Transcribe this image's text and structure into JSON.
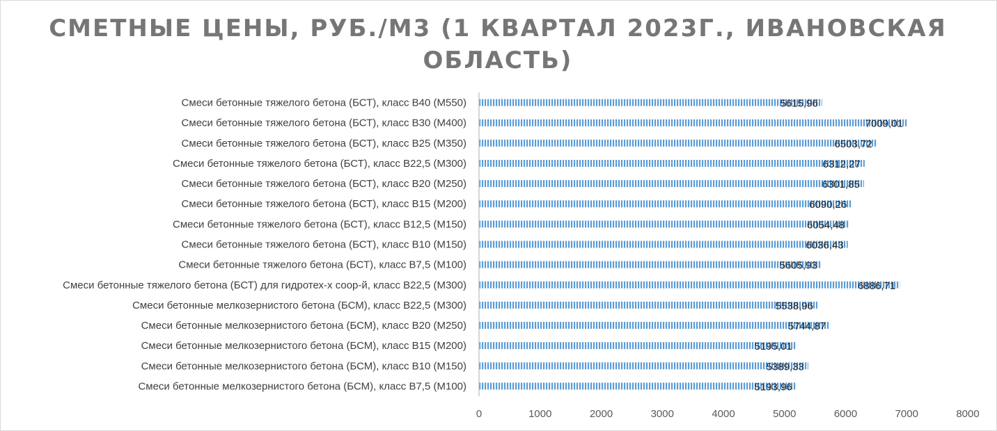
{
  "chart_data": {
    "type": "bar",
    "orientation": "horizontal",
    "title": "СМЕТНЫЕ ЦЕНЫ, РУБ./М3 (1 КВАРТАЛ 2023Г., ИВАНОВСКАЯ ОБЛАСТЬ)",
    "xlim": [
      0,
      8000
    ],
    "x_ticks": [
      "0",
      "1000",
      "2000",
      "3000",
      "4000",
      "5000",
      "6000",
      "7000",
      "8000"
    ],
    "grid": false,
    "legend": "none",
    "bar_color": "#5b9bd5",
    "categories": [
      "Смеси бетонные тяжелого бетона (БСТ), класс В40 (М550)",
      "Смеси бетонные тяжелого бетона (БСТ), класс В30 (М400)",
      "Смеси бетонные тяжелого бетона (БСТ), класс В25 (М350)",
      "Смеси бетонные тяжелого бетона (БСТ), класс В22,5 (М300)",
      "Смеси бетонные тяжелого бетона (БСТ), класс В20 (М250)",
      "Смеси бетонные тяжелого бетона (БСТ), класс В15 (М200)",
      "Смеси бетонные тяжелого бетона (БСТ), класс В12,5 (М150)",
      "Смеси бетонные тяжелого бетона (БСТ), класс В10 (М150)",
      "Смеси бетонные тяжелого бетона (БСТ), класс В7,5 (М100)",
      "Смеси бетонные тяжелого бетона (БСТ) для гидротех-х соор-й, класс В22,5 (М300)",
      "Смеси бетонные мелкозернистого бетона (БСМ), класс В22,5 (М300)",
      "Смеси бетонные мелкозернистого бетона (БСМ), класс В20 (М250)",
      "Смеси бетонные мелкозернистого бетона (БСМ), класс В15 (М200)",
      "Смеси бетонные мелкозернистого бетона (БСМ), класс В10 (М150)",
      "Смеси бетонные мелкозернистого бетона (БСМ), класс В7,5 (М100)"
    ],
    "values": [
      5615.96,
      7009.01,
      6503.72,
      6312.27,
      6301.85,
      6090.26,
      6054.48,
      6036.43,
      5605.93,
      6886.71,
      5538.96,
      5744.87,
      5195.01,
      5389.33,
      5193.96
    ],
    "value_labels": [
      "5615,96",
      "7009,01",
      "6503,72",
      "6312,27",
      "6301,85",
      "6090,26",
      "6054,48",
      "6036,43",
      "5605,93",
      "6886,71",
      "5538,96",
      "5744,87",
      "5195,01",
      "5389,33",
      "5193,96"
    ]
  }
}
